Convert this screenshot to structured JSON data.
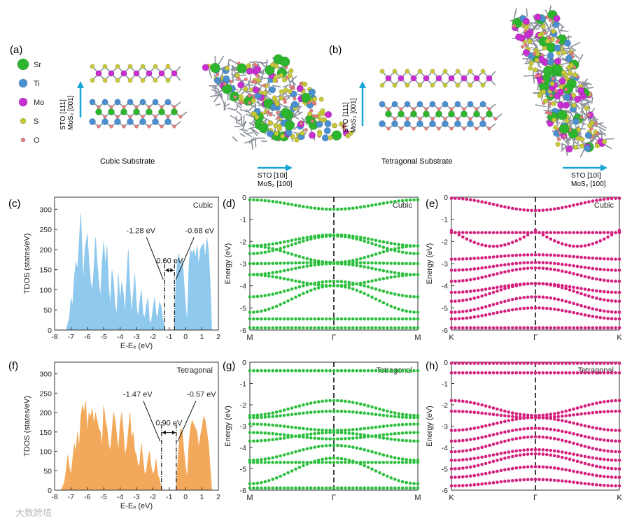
{
  "colors": {
    "sr": "#2db52d",
    "ti": "#4a8fcf",
    "mo": "#c72fd0",
    "s": "#c6c83a",
    "o": "#e47f7f",
    "bond": "#8a8f9a",
    "arrow": "#1aa3d6",
    "cubic_fill": "#8fc9ee",
    "tetra_fill": "#f3a95b",
    "green_band": "#2dbf3e",
    "pink_band": "#d4207d"
  },
  "legend": [
    {
      "key": "sr",
      "label": "Sr",
      "r": 8
    },
    {
      "key": "ti",
      "label": "Ti",
      "r": 6
    },
    {
      "key": "mo",
      "label": "Mo",
      "r": 6
    },
    {
      "key": "s",
      "label": "S",
      "r": 4
    },
    {
      "key": "o",
      "label": "O",
      "r": 3
    }
  ],
  "structures": {
    "a": {
      "label": "(a)",
      "axis_line1": "STO [111]",
      "axis_line2": "MoS₂ [001]",
      "caption": "Cubic  Substrate",
      "inplane_line1": "STO [10ī]",
      "inplane_line2": "MoS₂ [100]"
    },
    "b": {
      "label": "(b)",
      "axis_line1": "STO [111]",
      "axis_line2": "MoS₂ [001]",
      "caption": "Tetragonal  Substrate",
      "inplane_line1": "STO [10ī]",
      "inplane_line2": "MoS₂ [100]"
    }
  },
  "chart_data": [
    {
      "panel": "c",
      "type": "area",
      "title": "Cubic",
      "ylabel": "TDOS (states/eV)",
      "xlabel": "E-Eₑ (eV)",
      "xlim": [
        -8,
        2
      ],
      "ylim": [
        0,
        330
      ],
      "xticks": [
        -8,
        -7,
        -6,
        -5,
        -4,
        -3,
        -2,
        -1,
        0,
        1,
        2
      ],
      "yticks": [
        0,
        50,
        100,
        150,
        200,
        250,
        300
      ],
      "x": [
        -7.3,
        -7.1,
        -7.0,
        -6.9,
        -6.8,
        -6.7,
        -6.6,
        -6.5,
        -6.4,
        -6.3,
        -6.25,
        -6.15,
        -6.0,
        -5.9,
        -5.8,
        -5.7,
        -5.6,
        -5.5,
        -5.4,
        -5.3,
        -5.2,
        -5.1,
        -5.0,
        -4.9,
        -4.8,
        -4.7,
        -4.6,
        -4.5,
        -4.4,
        -4.3,
        -4.2,
        -4.1,
        -4.0,
        -3.9,
        -3.8,
        -3.7,
        -3.6,
        -3.5,
        -3.4,
        -3.3,
        -3.2,
        -3.1,
        -3.0,
        -2.9,
        -2.8,
        -2.7,
        -2.6,
        -2.5,
        -2.4,
        -2.3,
        -2.2,
        -2.1,
        -2.0,
        -1.9,
        -1.8,
        -1.7,
        -1.6,
        -1.5,
        -1.4,
        -1.28,
        -0.68,
        -0.6,
        -0.5,
        -0.4,
        -0.3,
        -0.2,
        -0.1,
        0.0,
        0.1,
        0.2,
        0.3,
        0.4,
        0.5,
        0.6,
        0.7,
        0.8,
        0.9,
        1.0,
        1.1,
        1.2,
        1.3,
        1.4,
        1.5,
        1.6
      ],
      "values": [
        0,
        30,
        80,
        60,
        130,
        170,
        150,
        220,
        290,
        180,
        120,
        200,
        240,
        170,
        120,
        100,
        150,
        230,
        170,
        120,
        80,
        170,
        220,
        160,
        210,
        110,
        60,
        150,
        120,
        60,
        40,
        140,
        70,
        120,
        90,
        40,
        130,
        200,
        110,
        40,
        90,
        140,
        60,
        30,
        70,
        100,
        40,
        30,
        60,
        80,
        20,
        20,
        50,
        80,
        40,
        30,
        70,
        60,
        30,
        0,
        0,
        120,
        170,
        190,
        150,
        180,
        120,
        60,
        20,
        160,
        200,
        190,
        200,
        180,
        210,
        160,
        200,
        210,
        215,
        180,
        230,
        200,
        120,
        0
      ],
      "annotations": {
        "left": "-1.28 eV",
        "right": "-0.68 eV",
        "gap": "0.60 eV",
        "vline1": -1.28,
        "vline2": -0.68
      }
    },
    {
      "panel": "f",
      "type": "area",
      "title": "Tetragonal",
      "ylabel": "TDOS (states/eV)",
      "xlabel": "E-Eₑ (eV)",
      "xlim": [
        -8,
        2
      ],
      "ylim": [
        0,
        330
      ],
      "xticks": [
        -8,
        -7,
        -6,
        -5,
        -4,
        -3,
        -2,
        -1,
        0,
        1,
        2
      ],
      "yticks": [
        0,
        50,
        100,
        150,
        200,
        250,
        300
      ],
      "x": [
        -7.6,
        -7.4,
        -7.3,
        -7.2,
        -7.1,
        -7.0,
        -6.9,
        -6.8,
        -6.7,
        -6.6,
        -6.5,
        -6.4,
        -6.3,
        -6.2,
        -6.1,
        -6.0,
        -5.9,
        -5.8,
        -5.7,
        -5.6,
        -5.5,
        -5.4,
        -5.3,
        -5.2,
        -5.1,
        -5.0,
        -4.9,
        -4.8,
        -4.7,
        -4.6,
        -4.5,
        -4.4,
        -4.3,
        -4.2,
        -4.1,
        -4.0,
        -3.9,
        -3.8,
        -3.7,
        -3.6,
        -3.5,
        -3.4,
        -3.3,
        -3.2,
        -3.1,
        -3.0,
        -2.9,
        -2.8,
        -2.7,
        -2.6,
        -2.5,
        -2.4,
        -2.3,
        -2.2,
        -2.1,
        -2.0,
        -1.9,
        -1.8,
        -1.7,
        -1.6,
        -1.47,
        -0.57,
        -0.5,
        -0.4,
        -0.3,
        -0.2,
        -0.1,
        0.0,
        0.1,
        0.2,
        0.3,
        0.4,
        0.5,
        0.6,
        0.7,
        0.8,
        0.9,
        1.0,
        1.1,
        1.2,
        1.3,
        1.4,
        1.5,
        1.6
      ],
      "values": [
        0,
        20,
        50,
        90,
        60,
        40,
        80,
        120,
        100,
        150,
        110,
        190,
        220,
        200,
        230,
        150,
        200,
        190,
        210,
        170,
        200,
        180,
        160,
        150,
        110,
        220,
        180,
        160,
        120,
        100,
        150,
        200,
        180,
        140,
        100,
        170,
        200,
        150,
        90,
        110,
        150,
        200,
        130,
        150,
        100,
        90,
        60,
        70,
        120,
        80,
        40,
        50,
        80,
        100,
        60,
        40,
        50,
        80,
        40,
        30,
        0,
        0,
        60,
        120,
        160,
        150,
        100,
        60,
        30,
        120,
        160,
        180,
        170,
        160,
        150,
        110,
        140,
        160,
        190,
        180,
        150,
        120,
        60,
        0
      ],
      "annotations": {
        "left": "-1.47 eV",
        "right": "-0.57 eV",
        "gap": "0.90 eV",
        "vline1": -1.47,
        "vline2": -0.57
      }
    },
    {
      "panel": "d",
      "type": "scatter",
      "title": "Cubic",
      "ylabel": "Energy (eV)",
      "ylim": [
        -6,
        0
      ],
      "yticks": [
        0,
        -1,
        -2,
        -3,
        -4,
        -5,
        -6
      ],
      "kpoints": [
        "M",
        "Γ",
        "M"
      ],
      "bands": [
        {
          "e0": -0.12,
          "e1": -0.55,
          "mode": "dip"
        },
        {
          "e0": -2.2,
          "e1": -1.7,
          "mode": "hump"
        },
        {
          "e0": -2.55,
          "e1": -1.75,
          "mode": "hump"
        },
        {
          "e0": -2.2,
          "e1": -2.95,
          "mode": "dip"
        },
        {
          "e0": -3.0,
          "e1": -2.95,
          "mode": "flat"
        },
        {
          "e0": -3.5,
          "e1": -3.0,
          "mode": "hump"
        },
        {
          "e0": -3.5,
          "e1": -4.0,
          "mode": "dip"
        },
        {
          "e0": -4.5,
          "e1": -3.8,
          "mode": "hump"
        },
        {
          "e0": -5.2,
          "e1": -4.0,
          "mode": "hump"
        },
        {
          "e0": -5.5,
          "e1": -5.5,
          "mode": "flat"
        },
        {
          "e0": -5.9,
          "e1": -5.9,
          "mode": "flat"
        }
      ]
    },
    {
      "panel": "e",
      "type": "scatter",
      "title": "Cubic",
      "ylabel": "Energy (eV)",
      "ylim": [
        -6,
        0
      ],
      "yticks": [
        0,
        -1,
        -2,
        -3,
        -4,
        -5,
        -6
      ],
      "kpoints": [
        "K",
        "Γ",
        "K"
      ],
      "bands": [
        {
          "e0": -0.05,
          "e1": -0.6,
          "mode": "dip"
        },
        {
          "e0": -1.5,
          "e1": -2.3,
          "mode": "dip2"
        },
        {
          "e0": -1.6,
          "e1": -1.6,
          "mode": "flat"
        },
        {
          "e0": -2.8,
          "e1": -2.6,
          "mode": "hump"
        },
        {
          "e0": -3.3,
          "e1": -2.95,
          "mode": "hump"
        },
        {
          "e0": -3.8,
          "e1": -3.2,
          "mode": "hump"
        },
        {
          "e0": -4.3,
          "e1": -3.9,
          "mode": "hump"
        },
        {
          "e0": -4.7,
          "e1": -3.9,
          "mode": "hump"
        },
        {
          "e0": -5.2,
          "e1": -4.5,
          "mode": "hump"
        },
        {
          "e0": -5.5,
          "e1": -5.0,
          "mode": "hump"
        },
        {
          "e0": -5.9,
          "e1": -5.9,
          "mode": "flat"
        }
      ]
    },
    {
      "panel": "g",
      "type": "scatter",
      "title": "Tetragonal",
      "ylabel": "Energy (eV)",
      "ylim": [
        -6,
        0
      ],
      "yticks": [
        0,
        -1,
        -2,
        -3,
        -4,
        -5,
        -6
      ],
      "kpoints": [
        "M",
        "Γ",
        "M"
      ],
      "bands": [
        {
          "e0": -0.4,
          "e1": -0.4,
          "mode": "flat"
        },
        {
          "e0": -2.5,
          "e1": -1.8,
          "mode": "hump"
        },
        {
          "e0": -2.6,
          "e1": -2.3,
          "mode": "hump"
        },
        {
          "e0": -2.9,
          "e1": -3.2,
          "mode": "dip"
        },
        {
          "e0": -3.3,
          "e1": -3.6,
          "mode": "dip"
        },
        {
          "e0": -3.7,
          "e1": -3.3,
          "mode": "hump"
        },
        {
          "e0": -4.6,
          "e1": -3.9,
          "mode": "hump"
        },
        {
          "e0": -4.7,
          "e1": -4.7,
          "mode": "flat"
        },
        {
          "e0": -5.7,
          "e1": -4.5,
          "mode": "hump"
        },
        {
          "e0": -5.9,
          "e1": -5.9,
          "mode": "flat"
        }
      ]
    },
    {
      "panel": "h",
      "type": "scatter",
      "title": "Tetragonal",
      "ylabel": "Energy (eV)",
      "ylim": [
        -6,
        0
      ],
      "yticks": [
        0,
        -1,
        -2,
        -3,
        -4,
        -5,
        -6
      ],
      "kpoints": [
        "K",
        "Γ",
        "K"
      ],
      "bands": [
        {
          "e0": -0.05,
          "e1": -0.05,
          "mode": "flat"
        },
        {
          "e0": -0.5,
          "e1": -0.5,
          "mode": "flat"
        },
        {
          "e0": -1.8,
          "e1": -2.5,
          "mode": "dip"
        },
        {
          "e0": -2.3,
          "e1": -2.6,
          "mode": "dip"
        },
        {
          "e0": -3.2,
          "e1": -2.6,
          "mode": "hump"
        },
        {
          "e0": -3.7,
          "e1": -3.1,
          "mode": "hump"
        },
        {
          "e0": -4.2,
          "e1": -3.5,
          "mode": "hump"
        },
        {
          "e0": -4.6,
          "e1": -4.1,
          "mode": "hump"
        },
        {
          "e0": -5.0,
          "e1": -4.3,
          "mode": "hump"
        },
        {
          "e0": -5.4,
          "e1": -4.9,
          "mode": "hump"
        },
        {
          "e0": -5.8,
          "e1": -5.5,
          "mode": "hump"
        }
      ]
    }
  ],
  "panel_labels": {
    "c": "(c)",
    "d": "(d)",
    "e": "(e)",
    "f": "(f)",
    "g": "(g)",
    "h": "(h)"
  },
  "watermark": "大数跨境"
}
